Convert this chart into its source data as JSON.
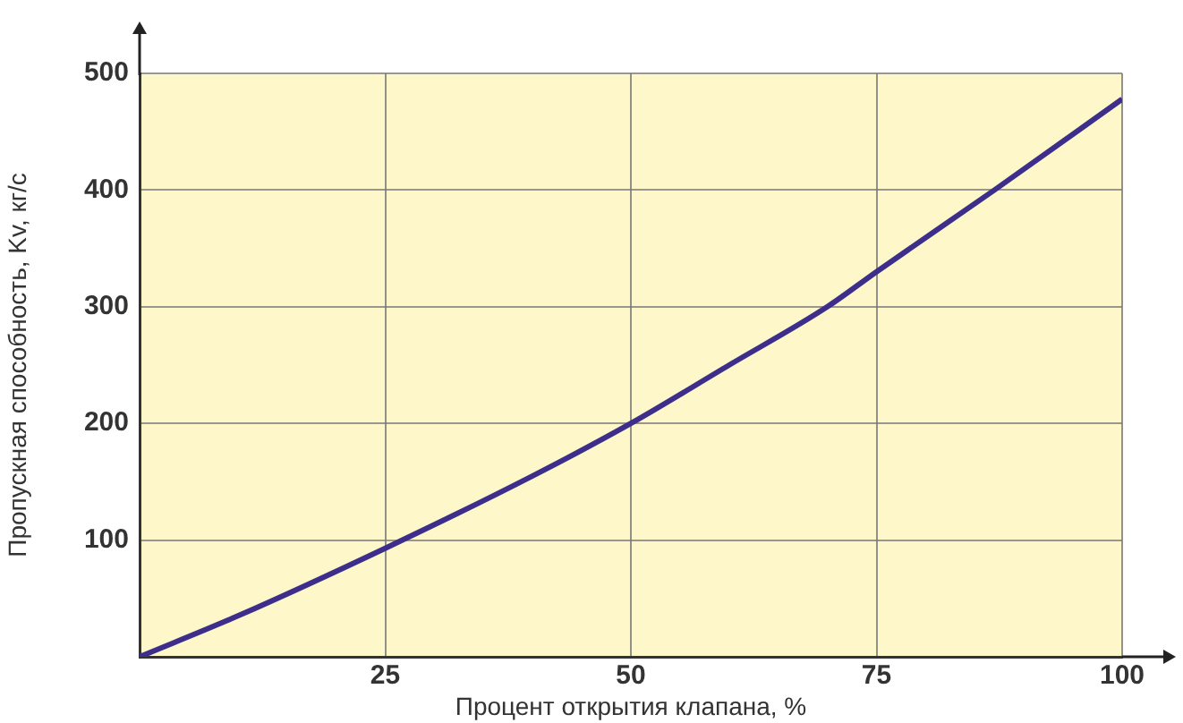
{
  "chart_data": {
    "type": "line",
    "xlabel": "Процент открытия клапана, %",
    "ylabel": "Пропускная способность, Kv, кг/с",
    "x": [
      0,
      10,
      25,
      40,
      50,
      60,
      70,
      75,
      87,
      100
    ],
    "series": [
      {
        "color": "#3d2e8c",
        "values": [
          0,
          35,
          93,
          155,
          200,
          250,
          300,
          330,
          400,
          478
        ]
      }
    ],
    "xlim": [
      0,
      100
    ],
    "xticks": [
      {
        "value": 0,
        "label": null
      },
      25,
      50,
      75,
      100
    ],
    "ylim": [
      0,
      500
    ],
    "yticks": [
      {
        "value": 0,
        "label": null
      },
      100,
      200,
      300,
      400,
      500
    ],
    "grid": true,
    "legend": false,
    "marker": "none",
    "line_style": "solid"
  }
}
